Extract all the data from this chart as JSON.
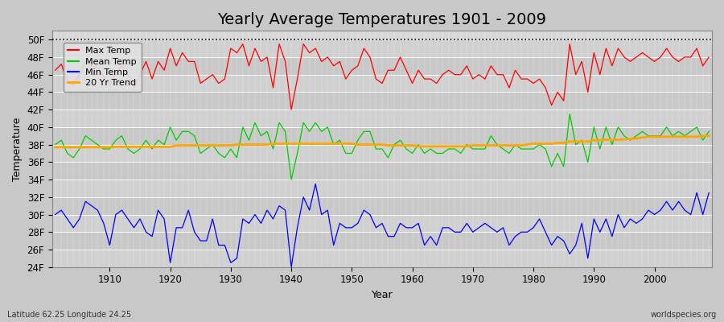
{
  "title": "Yearly Average Temperatures 1901 - 2009",
  "xlabel": "Year",
  "ylabel": "Temperature",
  "footer_left": "Latitude 62.25 Longitude 24.25",
  "footer_right": "worldspecies.org",
  "years": [
    1901,
    1902,
    1903,
    1904,
    1905,
    1906,
    1907,
    1908,
    1909,
    1910,
    1911,
    1912,
    1913,
    1914,
    1915,
    1916,
    1917,
    1918,
    1919,
    1920,
    1921,
    1922,
    1923,
    1924,
    1925,
    1926,
    1927,
    1928,
    1929,
    1930,
    1931,
    1932,
    1933,
    1934,
    1935,
    1936,
    1937,
    1938,
    1939,
    1940,
    1941,
    1942,
    1943,
    1944,
    1945,
    1946,
    1947,
    1948,
    1949,
    1950,
    1951,
    1952,
    1953,
    1954,
    1955,
    1956,
    1957,
    1958,
    1959,
    1960,
    1961,
    1962,
    1963,
    1964,
    1965,
    1966,
    1967,
    1968,
    1969,
    1970,
    1971,
    1972,
    1973,
    1974,
    1975,
    1976,
    1977,
    1978,
    1979,
    1980,
    1981,
    1982,
    1983,
    1984,
    1985,
    1986,
    1987,
    1988,
    1989,
    1990,
    1991,
    1992,
    1993,
    1994,
    1995,
    1996,
    1997,
    1998,
    1999,
    2000,
    2001,
    2002,
    2003,
    2004,
    2005,
    2006,
    2007,
    2008,
    2009
  ],
  "max_temp": [
    46.5,
    47.2,
    45.3,
    44.8,
    46.0,
    47.5,
    47.0,
    46.8,
    45.8,
    44.8,
    46.2,
    47.0,
    46.0,
    44.5,
    46.0,
    47.5,
    45.5,
    47.5,
    46.5,
    49.0,
    47.0,
    48.5,
    47.5,
    47.5,
    45.0,
    45.5,
    46.0,
    45.0,
    45.5,
    49.0,
    48.5,
    49.5,
    47.0,
    49.0,
    47.5,
    48.0,
    44.5,
    49.5,
    47.5,
    42.0,
    45.5,
    49.5,
    48.5,
    49.0,
    47.5,
    48.0,
    47.0,
    47.5,
    45.5,
    46.5,
    47.0,
    49.0,
    48.0,
    45.5,
    45.0,
    46.5,
    46.5,
    48.0,
    46.5,
    45.0,
    46.5,
    45.5,
    45.5,
    45.0,
    46.0,
    46.5,
    46.0,
    46.0,
    47.0,
    45.5,
    46.0,
    45.5,
    47.0,
    46.0,
    46.0,
    44.5,
    46.5,
    45.5,
    45.5,
    45.0,
    45.5,
    44.5,
    42.5,
    44.0,
    43.0,
    49.5,
    46.0,
    47.5,
    44.0,
    48.5,
    46.0,
    49.0,
    47.0,
    49.0,
    48.0,
    47.5,
    48.0,
    48.5,
    48.0,
    47.5,
    48.0,
    49.0,
    48.0,
    47.5,
    48.0,
    48.0,
    49.0,
    47.0,
    48.0
  ],
  "mean_temp": [
    38.0,
    38.5,
    37.0,
    36.5,
    37.5,
    39.0,
    38.5,
    38.0,
    37.5,
    37.5,
    38.5,
    39.0,
    37.5,
    37.0,
    37.5,
    38.5,
    37.5,
    38.5,
    38.0,
    40.0,
    38.5,
    39.5,
    39.5,
    39.0,
    37.0,
    37.5,
    38.0,
    37.0,
    36.5,
    37.5,
    36.5,
    40.0,
    38.5,
    40.5,
    39.0,
    39.5,
    37.5,
    40.5,
    39.5,
    34.0,
    37.0,
    40.5,
    39.5,
    40.5,
    39.5,
    40.0,
    38.0,
    38.5,
    37.0,
    37.0,
    38.5,
    39.5,
    39.5,
    37.5,
    37.5,
    36.5,
    38.0,
    38.5,
    37.5,
    37.0,
    38.0,
    37.0,
    37.5,
    37.0,
    37.0,
    37.5,
    37.5,
    37.0,
    38.0,
    37.5,
    37.5,
    37.5,
    39.0,
    38.0,
    37.5,
    37.0,
    38.0,
    37.5,
    37.5,
    37.5,
    38.0,
    37.5,
    35.5,
    37.0,
    35.5,
    41.5,
    38.0,
    38.5,
    36.0,
    40.0,
    37.5,
    40.0,
    38.0,
    40.0,
    39.0,
    38.5,
    39.0,
    39.5,
    39.0,
    39.0,
    39.0,
    40.0,
    39.0,
    39.5,
    39.0,
    39.5,
    40.0,
    38.5,
    39.5
  ],
  "min_temp": [
    30.0,
    30.5,
    29.5,
    28.5,
    29.5,
    31.5,
    31.0,
    30.5,
    29.0,
    26.5,
    30.0,
    30.5,
    29.5,
    28.5,
    29.5,
    28.0,
    27.5,
    30.5,
    29.5,
    24.5,
    28.5,
    28.5,
    30.5,
    28.0,
    27.0,
    27.0,
    29.5,
    26.5,
    26.5,
    24.5,
    25.0,
    29.5,
    29.0,
    30.0,
    29.0,
    30.5,
    29.5,
    31.0,
    30.5,
    24.0,
    28.5,
    32.0,
    30.5,
    33.5,
    30.0,
    30.5,
    26.5,
    29.0,
    28.5,
    28.5,
    29.0,
    30.5,
    30.0,
    28.5,
    29.0,
    27.5,
    27.5,
    29.0,
    28.5,
    28.5,
    29.0,
    26.5,
    27.5,
    26.5,
    28.5,
    28.5,
    28.0,
    28.0,
    29.0,
    28.0,
    28.5,
    29.0,
    28.5,
    28.0,
    28.5,
    26.5,
    27.5,
    28.0,
    28.0,
    28.5,
    29.5,
    28.0,
    26.5,
    27.5,
    27.0,
    25.5,
    26.5,
    29.0,
    25.0,
    29.5,
    28.0,
    29.5,
    27.5,
    30.0,
    28.5,
    29.5,
    29.0,
    29.5,
    30.5,
    30.0,
    30.5,
    31.5,
    30.5,
    31.5,
    30.5,
    30.0,
    32.5,
    30.0,
    32.5
  ],
  "trend": [
    37.7,
    37.7,
    37.7,
    37.7,
    37.7,
    37.7,
    37.7,
    37.7,
    37.7,
    37.7,
    37.75,
    37.75,
    37.75,
    37.75,
    37.75,
    37.75,
    37.75,
    37.75,
    37.75,
    37.75,
    37.9,
    37.9,
    37.9,
    37.9,
    37.9,
    37.9,
    37.9,
    37.9,
    37.9,
    37.9,
    38.0,
    38.0,
    38.0,
    38.0,
    38.0,
    38.0,
    38.1,
    38.1,
    38.1,
    38.1,
    38.1,
    38.1,
    38.1,
    38.1,
    38.1,
    38.1,
    38.1,
    38.1,
    38.1,
    38.1,
    38.0,
    38.0,
    38.0,
    38.0,
    38.0,
    37.9,
    37.9,
    37.9,
    37.9,
    37.9,
    37.8,
    37.8,
    37.8,
    37.8,
    37.8,
    37.8,
    37.8,
    37.8,
    37.8,
    37.9,
    37.9,
    37.9,
    37.9,
    37.9,
    37.9,
    37.9,
    37.9,
    37.9,
    38.0,
    38.1,
    38.1,
    38.1,
    38.1,
    38.2,
    38.2,
    38.35,
    38.35,
    38.35,
    38.35,
    38.5,
    38.5,
    38.55,
    38.55,
    38.55,
    38.6,
    38.65,
    38.7,
    38.8,
    38.9,
    38.9,
    38.9,
    38.9,
    38.9,
    38.9,
    38.9,
    38.9,
    38.9,
    39.0,
    39.0
  ],
  "max_color": "#ff0000",
  "mean_color": "#00cc00",
  "min_color": "#0000ff",
  "trend_color": "#ffa500",
  "fig_bg_color": "#c8c8c8",
  "plot_bg_color": "#d8d8d8",
  "band_colors": [
    "#d0d0d0",
    "#c8c8c8"
  ],
  "grid_color": "#ffffff",
  "ylim_min": 24,
  "ylim_max": 51,
  "yticks": [
    24,
    26,
    28,
    30,
    32,
    34,
    36,
    38,
    40,
    42,
    44,
    46,
    48,
    50
  ],
  "xticks": [
    1910,
    1920,
    1930,
    1940,
    1950,
    1960,
    1970,
    1980,
    1990,
    2000
  ],
  "dotted_line_y": 50,
  "title_fontsize": 14,
  "axis_fontsize": 9,
  "tick_fontsize": 8.5
}
